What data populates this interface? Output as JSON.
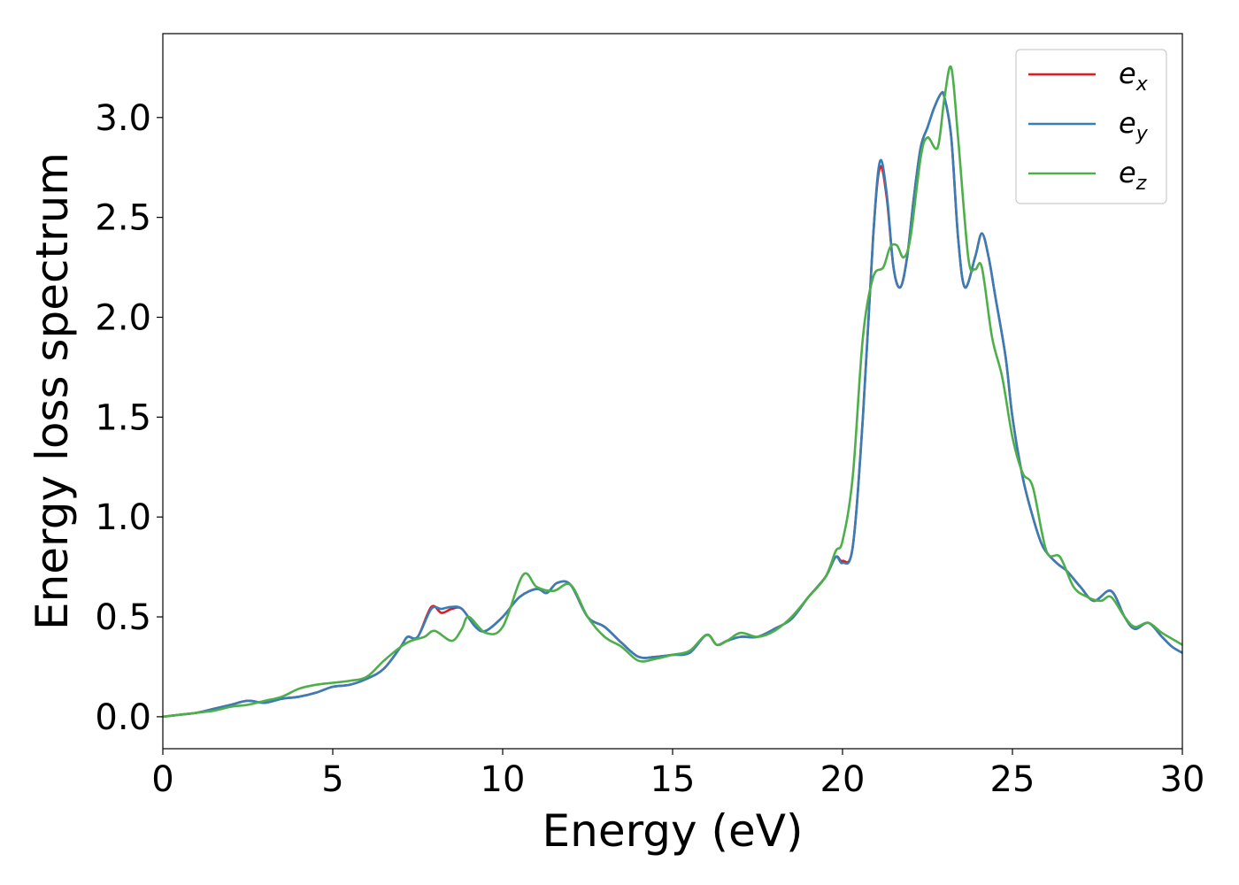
{
  "chart_data": {
    "type": "line",
    "title": "",
    "xlabel": "Energy (eV)",
    "ylabel": "Energy loss spectrum",
    "xlim": [
      0,
      30
    ],
    "ylim": [
      -0.16,
      3.42
    ],
    "xticks": [
      0,
      5,
      10,
      15,
      20,
      25,
      30
    ],
    "xtick_labels": [
      "0",
      "5",
      "10",
      "15",
      "20",
      "25",
      "30"
    ],
    "yticks": [
      0.0,
      0.5,
      1.0,
      1.5,
      2.0,
      2.5,
      3.0
    ],
    "ytick_labels": [
      "0.0",
      "0.5",
      "1.0",
      "1.5",
      "2.0",
      "2.5",
      "3.0"
    ],
    "grid": false,
    "legend_position": "top-right",
    "series": [
      {
        "name": "e_x",
        "legend_base": "e",
        "legend_sub": "x",
        "color": "#e41a1c",
        "x": [
          0,
          0.5,
          1.0,
          1.5,
          2.0,
          2.5,
          3.0,
          3.5,
          4.0,
          4.5,
          5.0,
          5.5,
          6.0,
          6.5,
          7.0,
          7.2,
          7.5,
          7.9,
          8.2,
          8.5,
          8.8,
          9.2,
          9.5,
          10.0,
          10.5,
          11.0,
          11.3,
          11.6,
          12.0,
          12.5,
          13.0,
          13.5,
          14.0,
          14.5,
          15.0,
          15.5,
          16.0,
          16.3,
          16.6,
          17.0,
          17.5,
          18.0,
          18.5,
          19.0,
          19.5,
          19.8,
          20.0,
          20.3,
          20.6,
          20.9,
          21.1,
          21.3,
          21.5,
          21.7,
          21.9,
          22.1,
          22.3,
          22.5,
          22.7,
          22.9,
          23.0,
          23.2,
          23.4,
          23.6,
          23.9,
          24.1,
          24.3,
          24.5,
          24.8,
          25.0,
          25.3,
          25.6,
          25.9,
          26.3,
          26.6,
          27.0,
          27.4,
          27.9,
          28.3,
          28.6,
          29.0,
          29.4,
          29.7,
          30.0
        ],
        "y": [
          0.0,
          0.01,
          0.02,
          0.04,
          0.06,
          0.08,
          0.07,
          0.09,
          0.1,
          0.12,
          0.15,
          0.16,
          0.19,
          0.24,
          0.35,
          0.4,
          0.4,
          0.55,
          0.52,
          0.54,
          0.54,
          0.45,
          0.43,
          0.5,
          0.6,
          0.64,
          0.62,
          0.67,
          0.66,
          0.5,
          0.45,
          0.37,
          0.3,
          0.3,
          0.31,
          0.32,
          0.41,
          0.36,
          0.38,
          0.4,
          0.4,
          0.44,
          0.49,
          0.6,
          0.7,
          0.8,
          0.78,
          0.85,
          1.5,
          2.4,
          2.75,
          2.6,
          2.25,
          2.15,
          2.3,
          2.6,
          2.85,
          2.95,
          3.05,
          3.12,
          3.1,
          2.9,
          2.4,
          2.15,
          2.3,
          2.42,
          2.3,
          2.1,
          1.8,
          1.5,
          1.2,
          1.0,
          0.85,
          0.77,
          0.73,
          0.65,
          0.58,
          0.63,
          0.5,
          0.44,
          0.47,
          0.4,
          0.35,
          0.32
        ]
      },
      {
        "name": "e_y",
        "legend_base": "e",
        "legend_sub": "y",
        "color": "#377eb8",
        "x": [
          0,
          0.5,
          1.0,
          1.5,
          2.0,
          2.5,
          3.0,
          3.5,
          4.0,
          4.5,
          5.0,
          5.5,
          6.0,
          6.5,
          7.0,
          7.2,
          7.5,
          7.9,
          8.2,
          8.5,
          8.8,
          9.2,
          9.5,
          10.0,
          10.5,
          11.0,
          11.3,
          11.6,
          12.0,
          12.5,
          13.0,
          13.5,
          14.0,
          14.5,
          15.0,
          15.5,
          16.0,
          16.3,
          16.6,
          17.0,
          17.5,
          18.0,
          18.5,
          19.0,
          19.5,
          19.8,
          20.0,
          20.3,
          20.6,
          20.9,
          21.1,
          21.3,
          21.5,
          21.7,
          21.9,
          22.1,
          22.3,
          22.5,
          22.7,
          22.9,
          23.0,
          23.2,
          23.4,
          23.6,
          23.9,
          24.1,
          24.3,
          24.5,
          24.8,
          25.0,
          25.3,
          25.6,
          25.9,
          26.3,
          26.6,
          27.0,
          27.4,
          27.9,
          28.3,
          28.6,
          29.0,
          29.4,
          29.7,
          30.0
        ],
        "y": [
          0.0,
          0.01,
          0.02,
          0.04,
          0.06,
          0.08,
          0.07,
          0.09,
          0.1,
          0.12,
          0.15,
          0.16,
          0.19,
          0.24,
          0.35,
          0.4,
          0.4,
          0.54,
          0.54,
          0.55,
          0.54,
          0.45,
          0.43,
          0.5,
          0.6,
          0.64,
          0.62,
          0.67,
          0.66,
          0.5,
          0.45,
          0.37,
          0.3,
          0.3,
          0.31,
          0.32,
          0.41,
          0.36,
          0.38,
          0.4,
          0.4,
          0.44,
          0.49,
          0.6,
          0.7,
          0.8,
          0.77,
          0.85,
          1.5,
          2.4,
          2.78,
          2.62,
          2.25,
          2.15,
          2.3,
          2.6,
          2.85,
          2.95,
          3.05,
          3.12,
          3.1,
          2.9,
          2.4,
          2.15,
          2.3,
          2.42,
          2.3,
          2.1,
          1.8,
          1.5,
          1.2,
          1.0,
          0.85,
          0.77,
          0.73,
          0.65,
          0.58,
          0.63,
          0.5,
          0.44,
          0.47,
          0.4,
          0.35,
          0.32
        ]
      },
      {
        "name": "e_z",
        "legend_base": "e",
        "legend_sub": "z",
        "color": "#4daf4a",
        "x": [
          0,
          0.5,
          1.0,
          1.5,
          2.0,
          2.5,
          3.0,
          3.5,
          4.0,
          4.5,
          5.0,
          5.5,
          6.0,
          6.5,
          7.0,
          7.3,
          7.7,
          8.0,
          8.5,
          8.8,
          9.0,
          9.5,
          10.0,
          10.6,
          11.0,
          11.5,
          12.0,
          12.5,
          13.0,
          13.5,
          14.0,
          14.5,
          15.0,
          15.5,
          16.0,
          16.3,
          16.6,
          17.0,
          17.5,
          18.0,
          18.5,
          19.0,
          19.5,
          19.8,
          20.0,
          20.3,
          20.6,
          20.9,
          21.2,
          21.4,
          21.6,
          21.8,
          22.0,
          22.3,
          22.5,
          22.8,
          23.0,
          23.2,
          23.4,
          23.7,
          23.9,
          24.1,
          24.4,
          24.7,
          25.0,
          25.3,
          25.6,
          26.0,
          26.4,
          26.8,
          27.2,
          27.6,
          27.9,
          28.3,
          28.6,
          29.0,
          29.4,
          29.8,
          30.0
        ],
        "y": [
          0.0,
          0.01,
          0.02,
          0.03,
          0.05,
          0.06,
          0.08,
          0.1,
          0.14,
          0.16,
          0.17,
          0.18,
          0.2,
          0.28,
          0.35,
          0.38,
          0.4,
          0.43,
          0.38,
          0.44,
          0.5,
          0.42,
          0.45,
          0.71,
          0.65,
          0.63,
          0.66,
          0.5,
          0.4,
          0.35,
          0.28,
          0.29,
          0.31,
          0.33,
          0.41,
          0.36,
          0.38,
          0.42,
          0.4,
          0.43,
          0.5,
          0.6,
          0.7,
          0.83,
          0.88,
          1.2,
          1.9,
          2.2,
          2.25,
          2.35,
          2.36,
          2.3,
          2.4,
          2.8,
          2.9,
          2.85,
          3.1,
          3.25,
          2.9,
          2.3,
          2.24,
          2.25,
          1.9,
          1.7,
          1.4,
          1.22,
          1.15,
          0.83,
          0.8,
          0.65,
          0.6,
          0.58,
          0.6,
          0.5,
          0.45,
          0.47,
          0.42,
          0.38,
          0.36
        ]
      }
    ]
  }
}
